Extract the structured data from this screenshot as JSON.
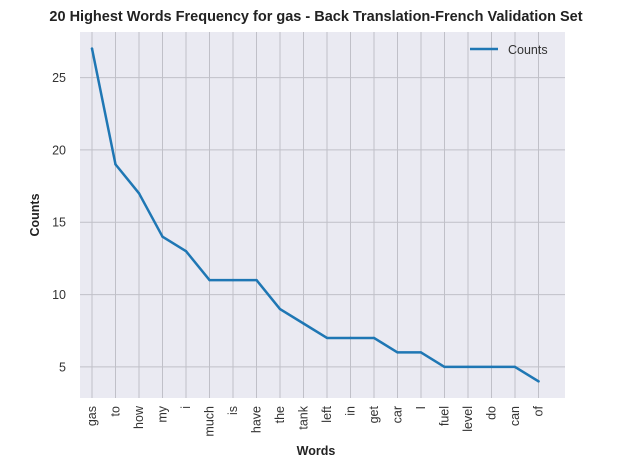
{
  "chart_data": {
    "type": "line",
    "title": "20 Highest Words Frequency for gas - Back Translation-French Validation Set",
    "xlabel": "Words",
    "ylabel": "Counts",
    "categories": [
      "gas",
      "to",
      "how",
      "my",
      "i",
      "much",
      "is",
      "have",
      "the",
      "tank",
      "left",
      "in",
      "get",
      "car",
      "I",
      "fuel",
      "level",
      "do",
      "can",
      "of"
    ],
    "series": [
      {
        "name": "Counts",
        "values": [
          27,
          19,
          17,
          14,
          13,
          11,
          11,
          11,
          9,
          8,
          7,
          7,
          7,
          6,
          6,
          5,
          5,
          5,
          5,
          4
        ]
      }
    ],
    "y_ticks": [
      5,
      10,
      15,
      20,
      25
    ],
    "ylim": [
      2.85,
      28.15
    ],
    "grid": true,
    "legend_position": "top-right",
    "colors": {
      "line": "#1f77b4",
      "background": "#eaeaf2",
      "grid": "#c0c0c8"
    }
  }
}
